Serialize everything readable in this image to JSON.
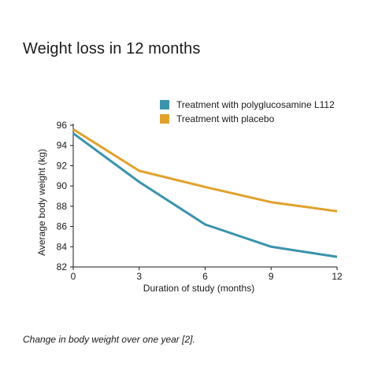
{
  "chart_data": {
    "type": "line",
    "title": "Weight loss in 12 months",
    "xlabel": "Duration of study (months)",
    "ylabel": "Average body weight (kg)",
    "x": [
      0,
      3,
      6,
      9,
      12
    ],
    "x_ticks": [
      "0",
      "3",
      "6",
      "9",
      "12"
    ],
    "y_ticks": [
      "82",
      "84",
      "86",
      "88",
      "90",
      "92",
      "94",
      "96"
    ],
    "xlim": [
      0,
      12
    ],
    "ylim": [
      82,
      96
    ],
    "grid": false,
    "legend_position": "top-right",
    "series": [
      {
        "name": "Treatment with polyglucosamine L112",
        "color": "#3a93ab",
        "values": [
          95.2,
          90.4,
          86.2,
          84.0,
          83.0
        ]
      },
      {
        "name": "Treatment with placebo",
        "color": "#e0a22e",
        "values": [
          95.6,
          91.5,
          89.9,
          88.4,
          87.5
        ]
      }
    ]
  },
  "caption": "Change in body weight over one year [2]."
}
